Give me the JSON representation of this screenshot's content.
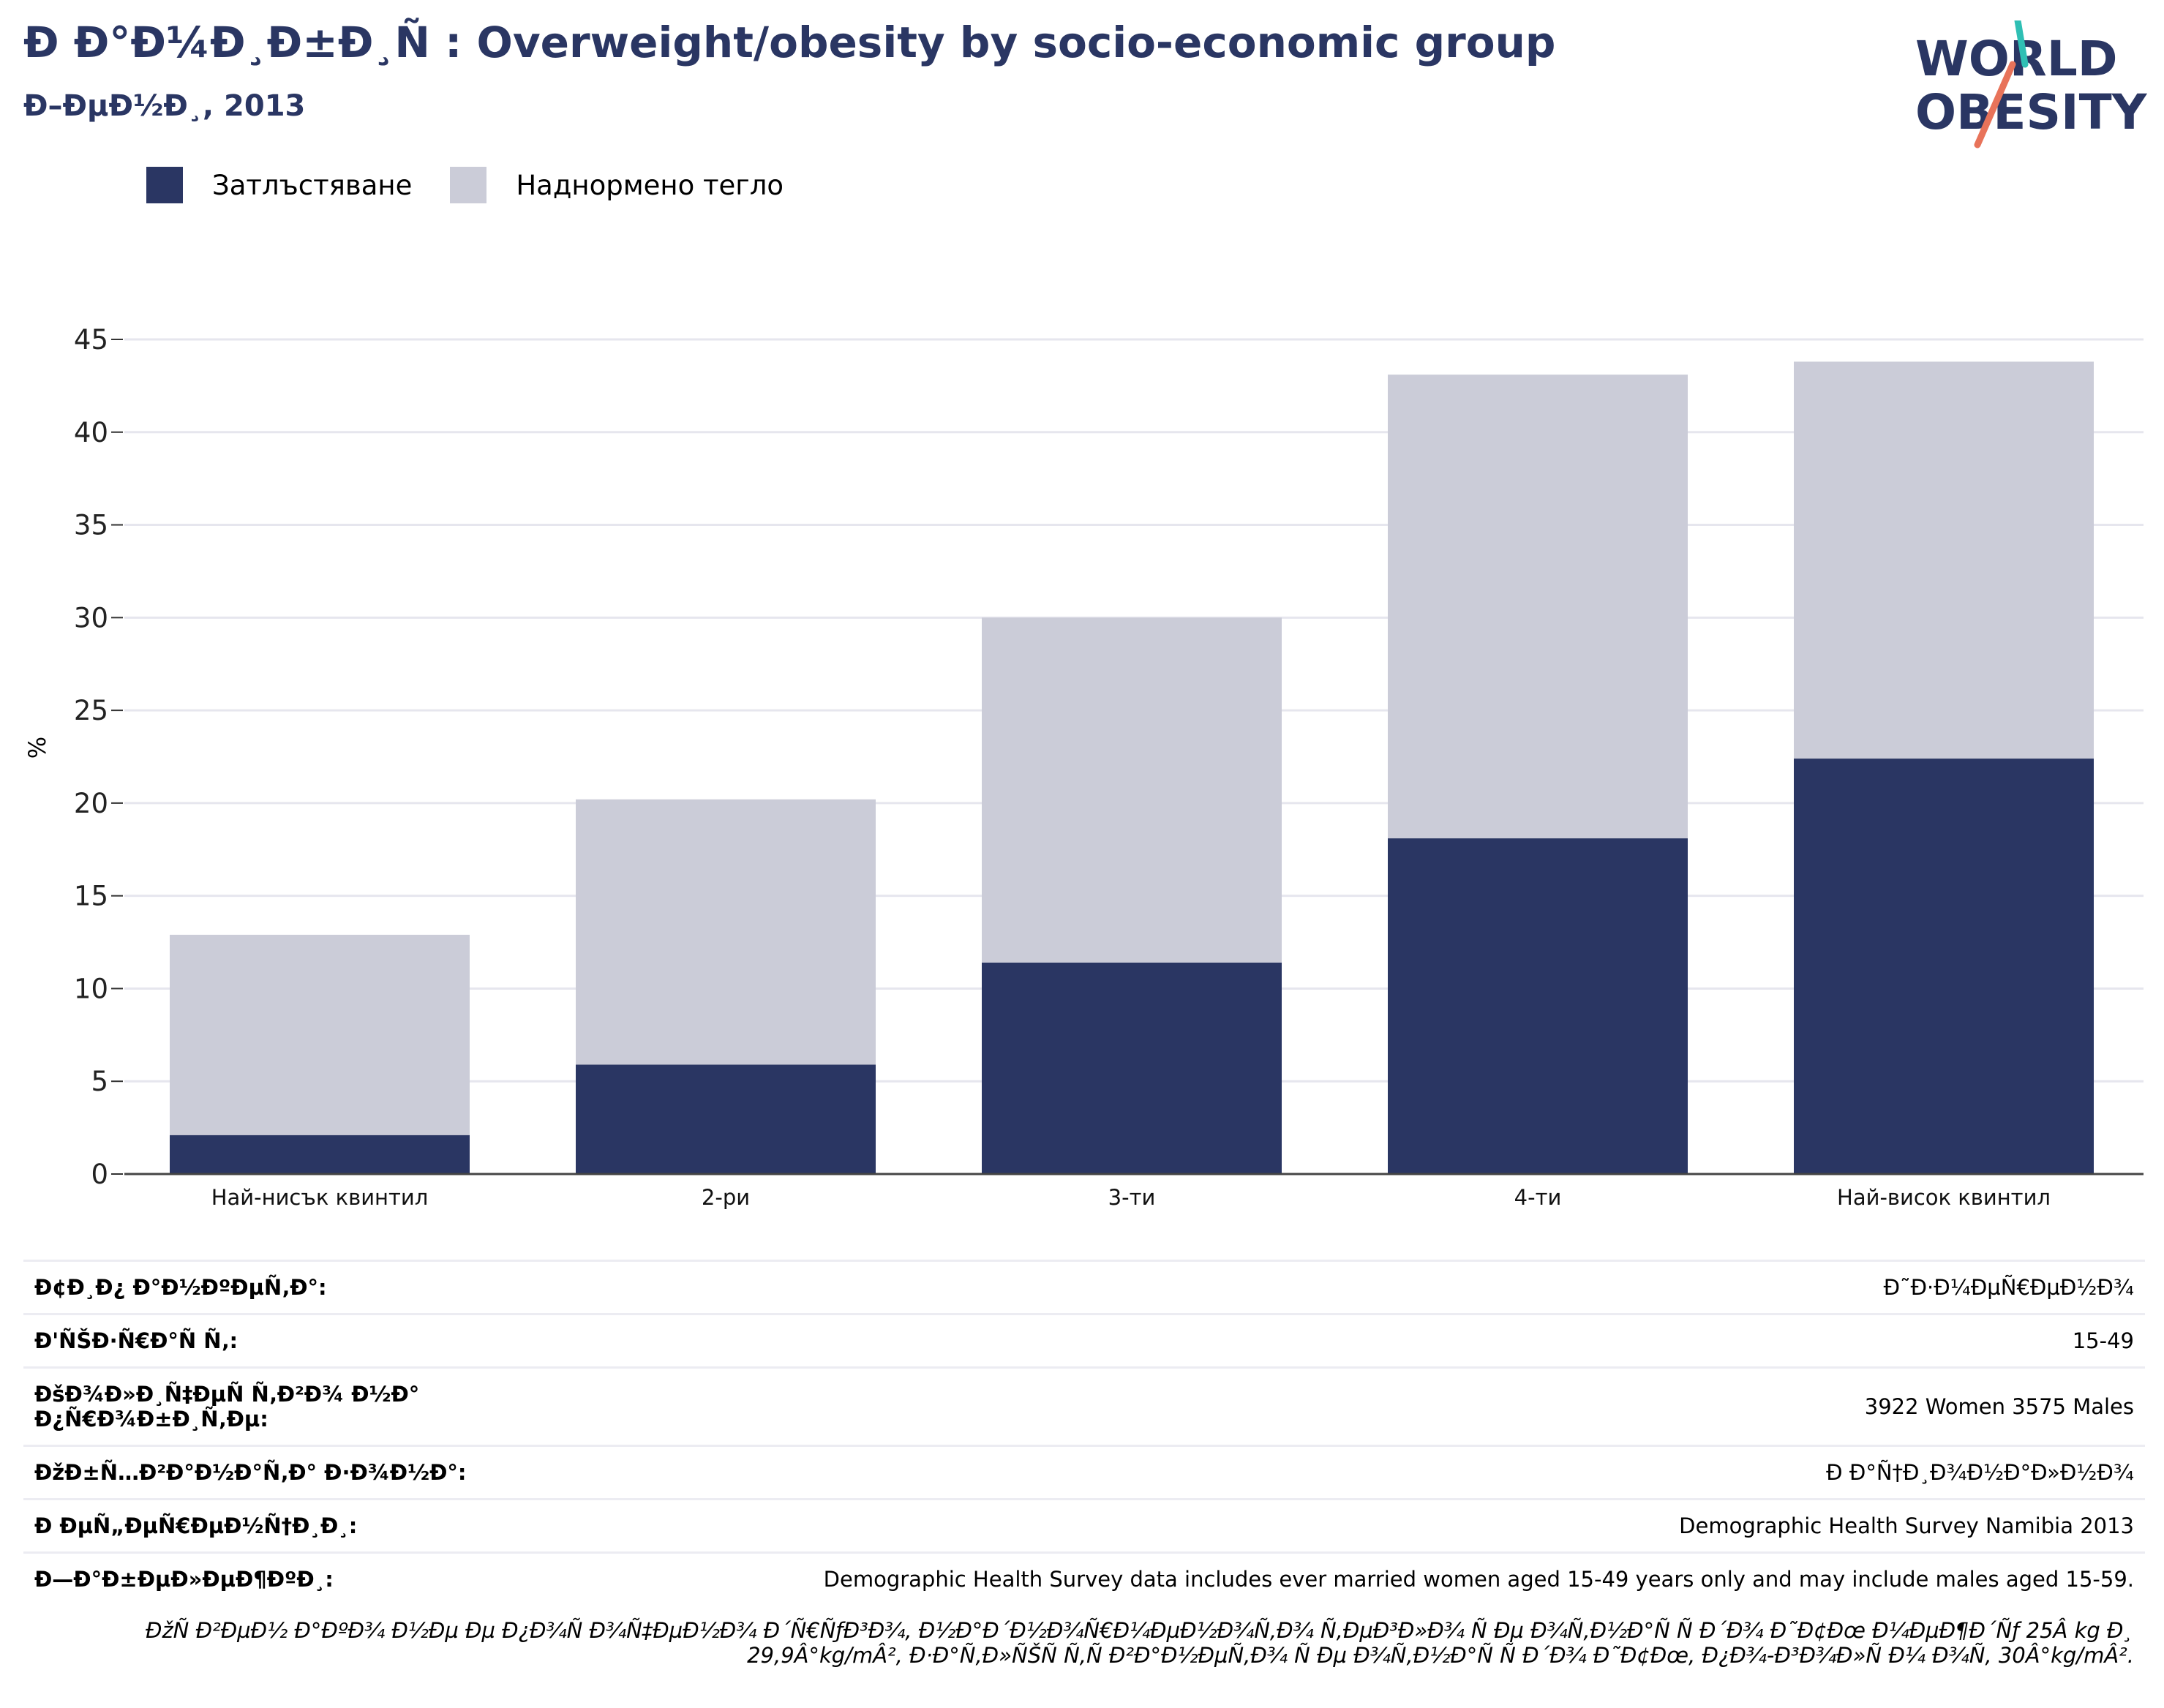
{
  "header": {
    "title": "Ð Ð°Ð¼Ð¸Ð±Ð¸Ñ : Overweight/obesity by socio-economic group",
    "subtitle": "Ð–ÐµÐ½Ð¸, 2013"
  },
  "logo": {
    "line1": "WORLD",
    "line2": "OBESITY",
    "accent_teal": "#2fbfb4",
    "accent_coral": "#e8735a"
  },
  "colors": {
    "obesity": "#2a3663",
    "overweight": "#cbccd8",
    "title": "#2a3663"
  },
  "legend": [
    {
      "label": "Затлъстяване",
      "color": "#2a3663"
    },
    {
      "label": "Наднормено тегло",
      "color": "#cbccd8"
    }
  ],
  "chart_data": {
    "type": "bar",
    "stacked": true,
    "categories": [
      "Най-нисък квинтил",
      "2-ри",
      "3-ти",
      "4-ти",
      "Най-висок квинтил"
    ],
    "series": [
      {
        "name": "Затлъстяване",
        "values": [
          2.1,
          5.9,
          11.4,
          18.1,
          22.4
        ]
      },
      {
        "name": "Наднормено тегло",
        "values": [
          10.8,
          14.3,
          18.6,
          25.0,
          21.4
        ]
      }
    ],
    "ylabel": "%",
    "ylim": [
      0,
      45
    ],
    "yticks": [
      0,
      5,
      10,
      15,
      20,
      25,
      30,
      35,
      40,
      45
    ],
    "grid": true,
    "legend_position": "top-left"
  },
  "info": [
    {
      "label": "Ð¢Ð¸Ð¿ Ð°Ð½ÐºÐµÑ‚Ð°:",
      "value": "Ð˜Ð·Ð¼ÐµÑ€ÐµÐ½Ð¾"
    },
    {
      "label": "Ð'ÑŠÐ·Ñ€Ð°Ñ Ñ‚:",
      "value": "15-49"
    },
    {
      "label": "ÐšÐ¾Ð»Ð¸Ñ‡ÐµÑ Ñ‚Ð²Ð¾ Ð½Ð° Ð¿Ñ€Ð¾Ð±Ð¸Ñ‚Ðµ:",
      "value": "3922 Women 3575 Males"
    },
    {
      "label": "ÐžÐ±Ñ…Ð²Ð°Ð½Ð°Ñ‚Ð° Ð·Ð¾Ð½Ð°:",
      "value": "Ð Ð°Ñ†Ð¸Ð¾Ð½Ð°Ð»Ð½Ð¾"
    },
    {
      "label": "Ð ÐµÑ„ÐµÑ€ÐµÐ½Ñ†Ð¸Ð¸:",
      "value": "Demographic Health Survey Namibia 2013"
    },
    {
      "label": "Ð—Ð°Ð±ÐµÐ»ÐµÐ¶ÐºÐ¸:",
      "value": "Demographic Health Survey data includes ever married women aged 15-49 years only and may include males aged 15-59."
    }
  ],
  "note": "ÐžÑ Ð²ÐµÐ½ Ð°ÐºÐ¾ Ð½Ðµ Ðµ Ð¿Ð¾Ñ Ð¾Ñ‡ÐµÐ½Ð¾ Ð´Ñ€ÑƒÐ³Ð¾, Ð½Ð°Ð´Ð½Ð¾Ñ€Ð¼ÐµÐ½Ð¾Ñ‚Ð¾ Ñ‚ÐµÐ³Ð»Ð¾ Ñ Ðµ Ð¾Ñ‚Ð½Ð°Ñ Ñ  Ð´Ð¾ Ð˜Ð¢Ðœ Ð¼ÐµÐ¶Ð´Ñƒ 25Â kg Ð¸ 29,9Â°kg/mÂ², Ð·Ð°Ñ‚Ð»ÑŠÑ Ñ‚Ñ Ð²Ð°Ð½ÐµÑ‚Ð¾ Ñ Ðµ Ð¾Ñ‚Ð½Ð°Ñ Ñ  Ð´Ð¾ Ð˜Ð¢Ðœ, Ð¿Ð¾-Ð³Ð¾Ð»Ñ Ð¼ Ð¾Ñ‚ 30Â°kg/mÂ²."
}
